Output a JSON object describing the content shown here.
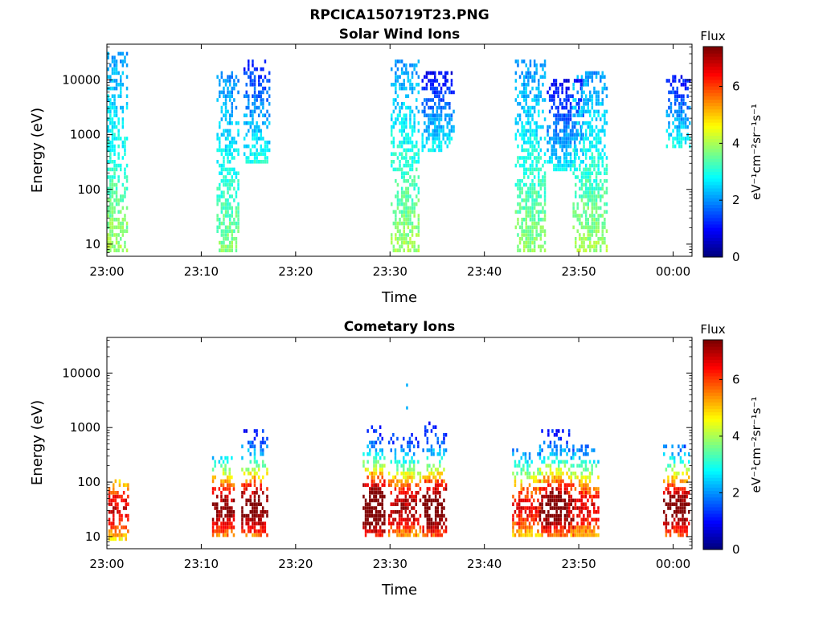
{
  "figure": {
    "filename_title": "RPCICA150719T23.PNG",
    "colorbar_label": "eV⁻¹cm⁻²sr⁻¹s⁻¹",
    "colorbar_title": "Flux"
  },
  "colorbar": {
    "colormap": "jet",
    "range": [
      0,
      7.4
    ],
    "ticks": [
      "0",
      "2",
      "4",
      "6"
    ]
  },
  "chart_data": [
    {
      "type": "heatmap",
      "title": "Solar Wind Ions",
      "xlabel": "Time",
      "ylabel": "Energy (eV)",
      "x_ticks": [
        "23:00",
        "23:10",
        "23:20",
        "23:30",
        "23:40",
        "23:50",
        "00:00"
      ],
      "x_range_minutes": [
        0,
        62
      ],
      "y_ticks": [
        "10",
        "100",
        "1000",
        "10000"
      ],
      "y_scale": "log",
      "y_range": [
        6,
        45000
      ],
      "z_label": "Flux",
      "z_range": [
        0,
        7.4
      ],
      "bursts": [
        {
          "center_min": 0.4,
          "e_low": 7,
          "e_high": 30000,
          "peak": 2.6
        },
        {
          "center_min": 12.8,
          "e_low": 7,
          "e_high": 15000,
          "peak": 2.4
        },
        {
          "center_min": 15.8,
          "e_low": 300,
          "e_high": 25000,
          "peak": 1.6
        },
        {
          "center_min": 31.5,
          "e_low": 7,
          "e_high": 25000,
          "peak": 2.6
        },
        {
          "center_min": 35.0,
          "e_low": 500,
          "e_high": 15000,
          "peak": 1.4
        },
        {
          "center_min": 44.8,
          "e_low": 7,
          "e_high": 25000,
          "peak": 2.5
        },
        {
          "center_min": 48.5,
          "e_low": 200,
          "e_high": 10000,
          "peak": 1.4
        },
        {
          "center_min": 51.2,
          "e_low": 7,
          "e_high": 15000,
          "peak": 2.6
        },
        {
          "center_min": 60.5,
          "e_low": 600,
          "e_high": 12000,
          "peak": 1.5
        }
      ]
    },
    {
      "type": "heatmap",
      "title": "Cometary Ions",
      "xlabel": "Time",
      "ylabel": "Energy (eV)",
      "x_ticks": [
        "23:00",
        "23:10",
        "23:20",
        "23:30",
        "23:40",
        "23:50",
        "00:00"
      ],
      "x_range_minutes": [
        0,
        62
      ],
      "y_ticks": [
        "10",
        "100",
        "1000",
        "10000"
      ],
      "y_scale": "log",
      "y_range": [
        6,
        45000
      ],
      "z_label": "Flux",
      "z_range": [
        0,
        7.4
      ],
      "bursts": [
        {
          "center_min": 0.4,
          "e_low": 8,
          "e_high": 120,
          "peak": 5.6
        },
        {
          "center_min": 12.3,
          "e_low": 10,
          "e_high": 300,
          "peak": 6.0
        },
        {
          "center_min": 15.6,
          "e_low": 10,
          "e_high": 900,
          "peak": 6.3
        },
        {
          "center_min": 28.3,
          "e_low": 10,
          "e_high": 1200,
          "peak": 7.2
        },
        {
          "center_min": 31.5,
          "e_low": 10,
          "e_high": 800,
          "peak": 5.8
        },
        {
          "center_min": 34.7,
          "e_low": 10,
          "e_high": 1200,
          "peak": 6.6
        },
        {
          "center_min": 44.5,
          "e_low": 10,
          "e_high": 400,
          "peak": 5.2
        },
        {
          "center_min": 47.6,
          "e_low": 10,
          "e_high": 1000,
          "peak": 6.4
        },
        {
          "center_min": 50.5,
          "e_low": 10,
          "e_high": 500,
          "peak": 5.4
        },
        {
          "center_min": 60.5,
          "e_low": 10,
          "e_high": 500,
          "peak": 6.3
        }
      ],
      "outliers": [
        {
          "time_min": 31.7,
          "energy": 6000,
          "value": 2.2
        },
        {
          "time_min": 31.7,
          "energy": 2300,
          "value": 2.2
        }
      ]
    }
  ]
}
